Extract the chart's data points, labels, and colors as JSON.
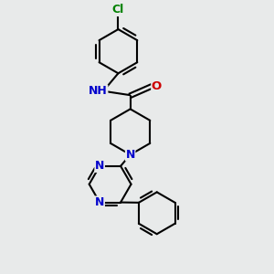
{
  "bg_color": "#e8eaea",
  "atom_colors": {
    "C": "#000000",
    "N": "#0000cc",
    "O": "#cc0000",
    "Cl": "#008000",
    "H": "#000000"
  },
  "bond_color": "#000000",
  "bond_width": 1.5,
  "font_size": 9.5,
  "layout": {
    "xlim": [
      0,
      10
    ],
    "ylim": [
      0,
      10
    ]
  }
}
